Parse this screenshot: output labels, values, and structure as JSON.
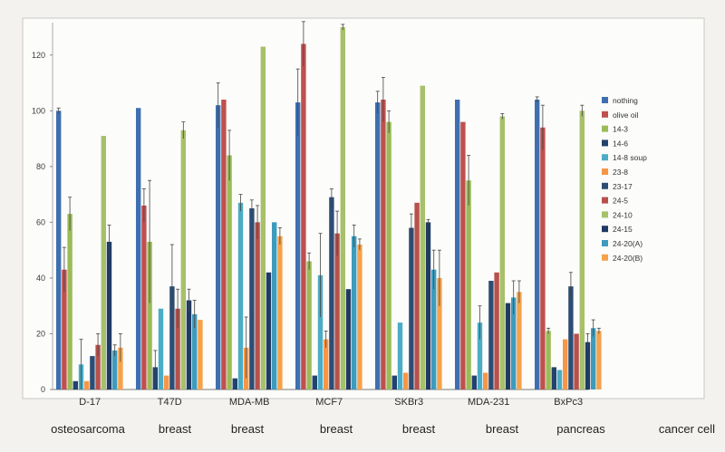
{
  "chart_data": {
    "type": "bar",
    "title": "",
    "xlabel": "",
    "ylabel": "",
    "ylim": [
      0,
      130
    ],
    "yticks": [
      0,
      20,
      40,
      60,
      80,
      100,
      120
    ],
    "grid": false,
    "legend_position": "right",
    "categories": [
      "D-17",
      "T47D",
      "MDA-MB",
      "MCF7",
      "SKBr3",
      "MDA-231",
      "BxPc3"
    ],
    "tissue_labels": [
      "osteosarcoma",
      "breast",
      "breast",
      "breast",
      "breast",
      "breast",
      "pancreas",
      "cancer cell"
    ],
    "series": [
      {
        "name": "nothing",
        "color": "#3f6fb0",
        "values": [
          100,
          101,
          102,
          103,
          103,
          104,
          104
        ],
        "errors": [
          1,
          0,
          8,
          12,
          4,
          0,
          1
        ]
      },
      {
        "name": "olive oil",
        "color": "#c0504d",
        "values": [
          43,
          66,
          104,
          124,
          104,
          96,
          94
        ],
        "errors": [
          8,
          6,
          0,
          8,
          8,
          0,
          8
        ]
      },
      {
        "name": "14-3",
        "color": "#9bbb59",
        "values": [
          63,
          53,
          84,
          46,
          96,
          75,
          21
        ],
        "errors": [
          6,
          22,
          9,
          3,
          4,
          9,
          1
        ]
      },
      {
        "name": "14-6",
        "color": "#23426d",
        "values": [
          3,
          8,
          4,
          5,
          5,
          5,
          8
        ],
        "errors": [
          0,
          6,
          0,
          0,
          0,
          0,
          0
        ]
      },
      {
        "name": "14-8 soup",
        "color": "#4bacc6",
        "values": [
          9,
          29,
          67,
          41,
          24,
          24,
          7
        ],
        "errors": [
          9,
          0,
          3,
          15,
          0,
          6,
          0
        ]
      },
      {
        "name": "23-8",
        "color": "#f79646",
        "values": [
          3,
          5,
          15,
          18,
          6,
          6,
          18
        ],
        "errors": [
          0,
          0,
          11,
          3,
          0,
          0,
          0
        ]
      },
      {
        "name": "23-17",
        "color": "#2c4d75",
        "values": [
          12,
          37,
          65,
          69,
          58,
          39,
          37
        ],
        "errors": [
          0,
          15,
          3,
          3,
          5,
          0,
          5
        ]
      },
      {
        "name": "24-5",
        "color": "#b7514b",
        "values": [
          16,
          29,
          60,
          56,
          67,
          42,
          20
        ],
        "errors": [
          4,
          7,
          6,
          8,
          0,
          0,
          0
        ]
      },
      {
        "name": "24-10",
        "color": "#a7c06a",
        "values": [
          91,
          93,
          123,
          130,
          109,
          98,
          100
        ],
        "errors": [
          0,
          3,
          0,
          1,
          0,
          1,
          2
        ]
      },
      {
        "name": "24-15",
        "color": "#1f3a63",
        "values": [
          53,
          32,
          42,
          36,
          60,
          31,
          17
        ],
        "errors": [
          6,
          4,
          0,
          0,
          1,
          0,
          3
        ]
      },
      {
        "name": "24-20(A)",
        "color": "#3d9bbd",
        "values": [
          14,
          27,
          60,
          55,
          43,
          33,
          22
        ],
        "errors": [
          2,
          5,
          0,
          4,
          7,
          6,
          3
        ]
      },
      {
        "name": "24-20(B)",
        "color": "#f5a24b",
        "values": [
          15,
          25,
          55,
          52,
          40,
          35,
          21
        ],
        "errors": [
          5,
          0,
          3,
          2,
          10,
          4,
          1
        ]
      }
    ]
  }
}
